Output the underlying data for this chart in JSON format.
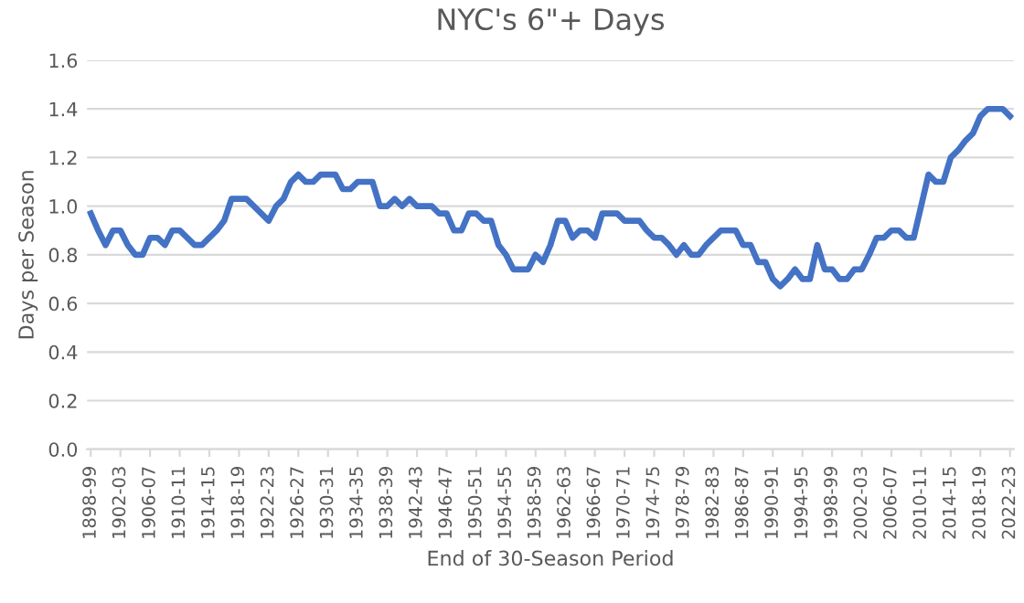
{
  "chart_data": {
    "type": "line",
    "title": "NYC's 6\"+ Days",
    "xlabel": "End of 30-Season Period",
    "ylabel": "Days per Season",
    "categories": [
      "1898-99",
      null,
      null,
      null,
      "1902-03",
      null,
      null,
      null,
      "1906-07",
      null,
      null,
      null,
      "1910-11",
      null,
      null,
      null,
      "1914-15",
      null,
      null,
      null,
      "1918-19",
      null,
      null,
      null,
      "1922-23",
      null,
      null,
      null,
      "1926-27",
      null,
      null,
      null,
      "1930-31",
      null,
      null,
      null,
      "1934-35",
      null,
      null,
      null,
      "1938-39",
      null,
      null,
      null,
      "1942-43",
      null,
      null,
      null,
      "1946-47",
      null,
      null,
      null,
      "1950-51",
      null,
      null,
      null,
      "1954-55",
      null,
      null,
      null,
      "1958-59",
      null,
      null,
      null,
      "1962-63",
      null,
      null,
      null,
      "1966-67",
      null,
      null,
      null,
      "1970-71",
      null,
      null,
      null,
      "1974-75",
      null,
      null,
      null,
      "1978-79",
      null,
      null,
      null,
      "1982-83",
      null,
      null,
      null,
      "1986-87",
      null,
      null,
      null,
      "1990-91",
      null,
      null,
      null,
      "1994-95",
      null,
      null,
      null,
      "1998-99",
      null,
      null,
      null,
      "2002-03",
      null,
      null,
      null,
      "2006-07",
      null,
      null,
      null,
      "2010-11",
      null,
      null,
      null,
      "2014-15",
      null,
      null,
      null,
      "2018-19",
      null,
      null,
      null,
      "2022-23"
    ],
    "series": [
      {
        "color": "#4472c4",
        "values": [
          0.97,
          0.9,
          0.84,
          0.9,
          0.9,
          0.84,
          0.8,
          0.8,
          0.87,
          0.87,
          0.84,
          0.9,
          0.9,
          0.87,
          0.84,
          0.84,
          0.87,
          0.9,
          0.94,
          1.03,
          1.03,
          1.03,
          1.0,
          0.97,
          0.94,
          1.0,
          1.03,
          1.1,
          1.13,
          1.1,
          1.1,
          1.13,
          1.13,
          1.13,
          1.07,
          1.07,
          1.1,
          1.1,
          1.1,
          1.0,
          1.0,
          1.03,
          1.0,
          1.03,
          1.0,
          1.0,
          1.0,
          0.97,
          0.97,
          0.9,
          0.9,
          0.97,
          0.97,
          0.94,
          0.94,
          0.84,
          0.8,
          0.74,
          0.74,
          0.74,
          0.8,
          0.77,
          0.84,
          0.94,
          0.94,
          0.87,
          0.9,
          0.9,
          0.87,
          0.97,
          0.97,
          0.97,
          0.94,
          0.94,
          0.94,
          0.9,
          0.87,
          0.87,
          0.84,
          0.8,
          0.84,
          0.8,
          0.8,
          0.84,
          0.87,
          0.9,
          0.9,
          0.9,
          0.84,
          0.84,
          0.77,
          0.77,
          0.7,
          0.67,
          0.7,
          0.74,
          0.7,
          0.7,
          0.84,
          0.74,
          0.74,
          0.7,
          0.7,
          0.74,
          0.74,
          0.8,
          0.87,
          0.87,
          0.9,
          0.9,
          0.87,
          0.87,
          1.0,
          1.13,
          1.1,
          1.1,
          1.2,
          1.23,
          1.27,
          1.3,
          1.37,
          1.4,
          1.4,
          1.4,
          1.37
        ]
      }
    ],
    "ylim": [
      0,
      1.6
    ],
    "yticks": [
      {
        "value": 0,
        "label": "0.0"
      },
      {
        "value": 0.2,
        "label": "0.2"
      },
      {
        "value": 0.4,
        "label": "0.4"
      },
      {
        "value": 0.6,
        "label": "0.6"
      },
      {
        "value": 0.8,
        "label": "0.8"
      },
      {
        "value": 1.0,
        "label": "1.0"
      },
      {
        "value": 1.2,
        "label": "1.2"
      },
      {
        "value": 1.4,
        "label": "1.4"
      },
      {
        "value": 1.6,
        "label": "1.6"
      }
    ],
    "grid": "y",
    "marker": "none",
    "line_style": "solid"
  }
}
